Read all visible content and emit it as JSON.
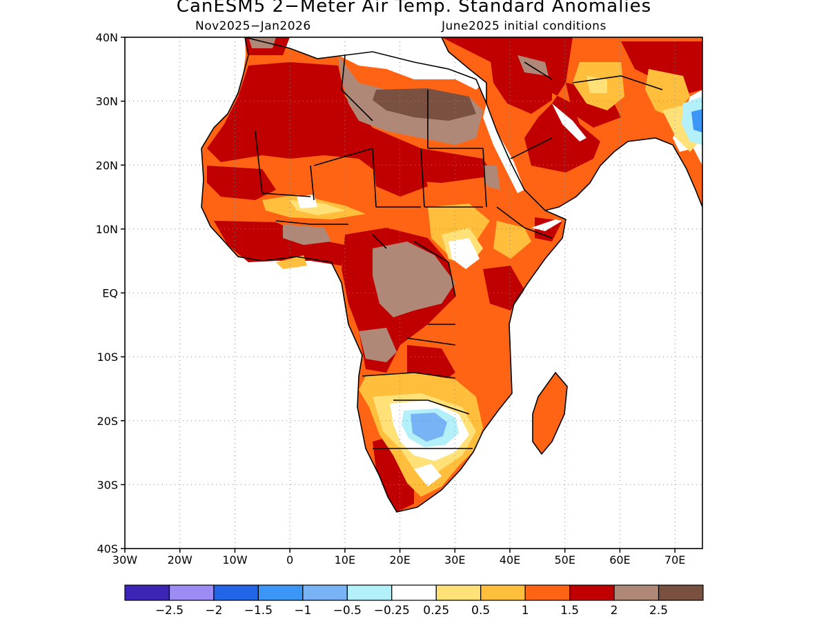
{
  "title": "CanESM5 2−Meter Air Temp. Standard Anomalies",
  "period": "Nov2025−Jan2026",
  "initial_conditions": "June2025 initial conditions",
  "lat_ticks": [
    {
      "deg": 40,
      "label": "40N"
    },
    {
      "deg": 30,
      "label": "30N"
    },
    {
      "deg": 20,
      "label": "20N"
    },
    {
      "deg": 10,
      "label": "10N"
    },
    {
      "deg": 0,
      "label": "EQ"
    },
    {
      "deg": -10,
      "label": "10S"
    },
    {
      "deg": -20,
      "label": "20S"
    },
    {
      "deg": -30,
      "label": "30S"
    },
    {
      "deg": -40,
      "label": "40S"
    }
  ],
  "lon_ticks": [
    {
      "deg": -30,
      "label": "30W"
    },
    {
      "deg": -20,
      "label": "20W"
    },
    {
      "deg": -10,
      "label": "10W"
    },
    {
      "deg": 0,
      "label": "0"
    },
    {
      "deg": 10,
      "label": "10E"
    },
    {
      "deg": 20,
      "label": "20E"
    },
    {
      "deg": 30,
      "label": "30E"
    },
    {
      "deg": 40,
      "label": "40E"
    },
    {
      "deg": 50,
      "label": "50E"
    },
    {
      "deg": 60,
      "label": "60E"
    },
    {
      "deg": 70,
      "label": "70E"
    }
  ],
  "extent": {
    "lon_min": -30,
    "lon_max": 75,
    "lat_min": -40,
    "lat_max": 40
  },
  "colorbar": {
    "colors": [
      "#3c24b4",
      "#9e8cf5",
      "#2265e6",
      "#3c96f5",
      "#78b4f5",
      "#b4f0fa",
      "#ffffff",
      "#ffe178",
      "#ffbe3c",
      "#ff6414",
      "#c00000",
      "#b08878",
      "#7a5040"
    ],
    "labels": [
      "−2.5",
      "−2",
      "−1.5",
      "−1",
      "−0.5",
      "−0.25",
      "0.25",
      "0.5",
      "1",
      "1.5",
      "2",
      "2.5"
    ]
  },
  "map_colors": {
    "land_base": "#ff6414",
    "strong_warm": "#c00000",
    "brown": "#b08878",
    "dark_brown": "#7a5040",
    "light_orange": "#ffbe3c",
    "yellow": "#ffe178",
    "neutral": "#ffffff",
    "light_blue": "#b4f0fa",
    "blue": "#78b4f5",
    "mid_blue": "#3c96f5",
    "coast": "#000000"
  }
}
